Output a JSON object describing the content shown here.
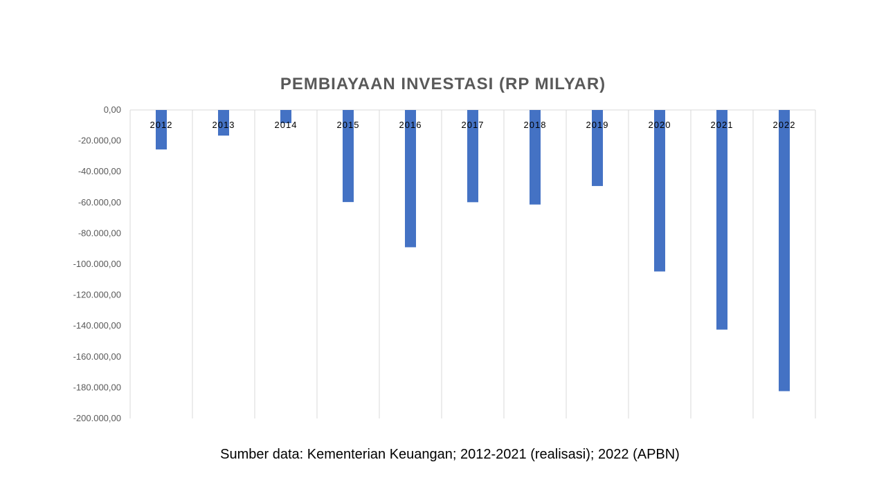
{
  "chart_data": {
    "type": "bar",
    "title": "PEMBIAYAAN INVESTASI (RP MILYAR)",
    "categories": [
      "2012",
      "2013",
      "2014",
      "2015",
      "2016",
      "2017",
      "2018",
      "2019",
      "2020",
      "2021",
      "2022"
    ],
    "values": [
      -25600,
      -16600,
      -8500,
      -59700,
      -89000,
      -59800,
      -61300,
      -49300,
      -104700,
      -142400,
      -182300
    ],
    "ylim": [
      -200000,
      0
    ],
    "yticks": [
      0,
      -20000,
      -40000,
      -60000,
      -80000,
      -100000,
      -120000,
      -140000,
      -160000,
      -180000,
      -200000
    ],
    "ytick_labels": [
      "0,00",
      "-20.000,00",
      "-40.000,00",
      "-60.000,00",
      "-80.000,00",
      "-100.000,00",
      "-120.000,00",
      "-140.000,00",
      "-160.000,00",
      "-180.000,00",
      "-200.000,00"
    ],
    "grid": "vertical",
    "legend": "none",
    "bar_color": "#4472C4"
  },
  "source_note": "Sumber data: Kementerian Keuangan; 2012-2021 (realisasi); 2022 (APBN)"
}
